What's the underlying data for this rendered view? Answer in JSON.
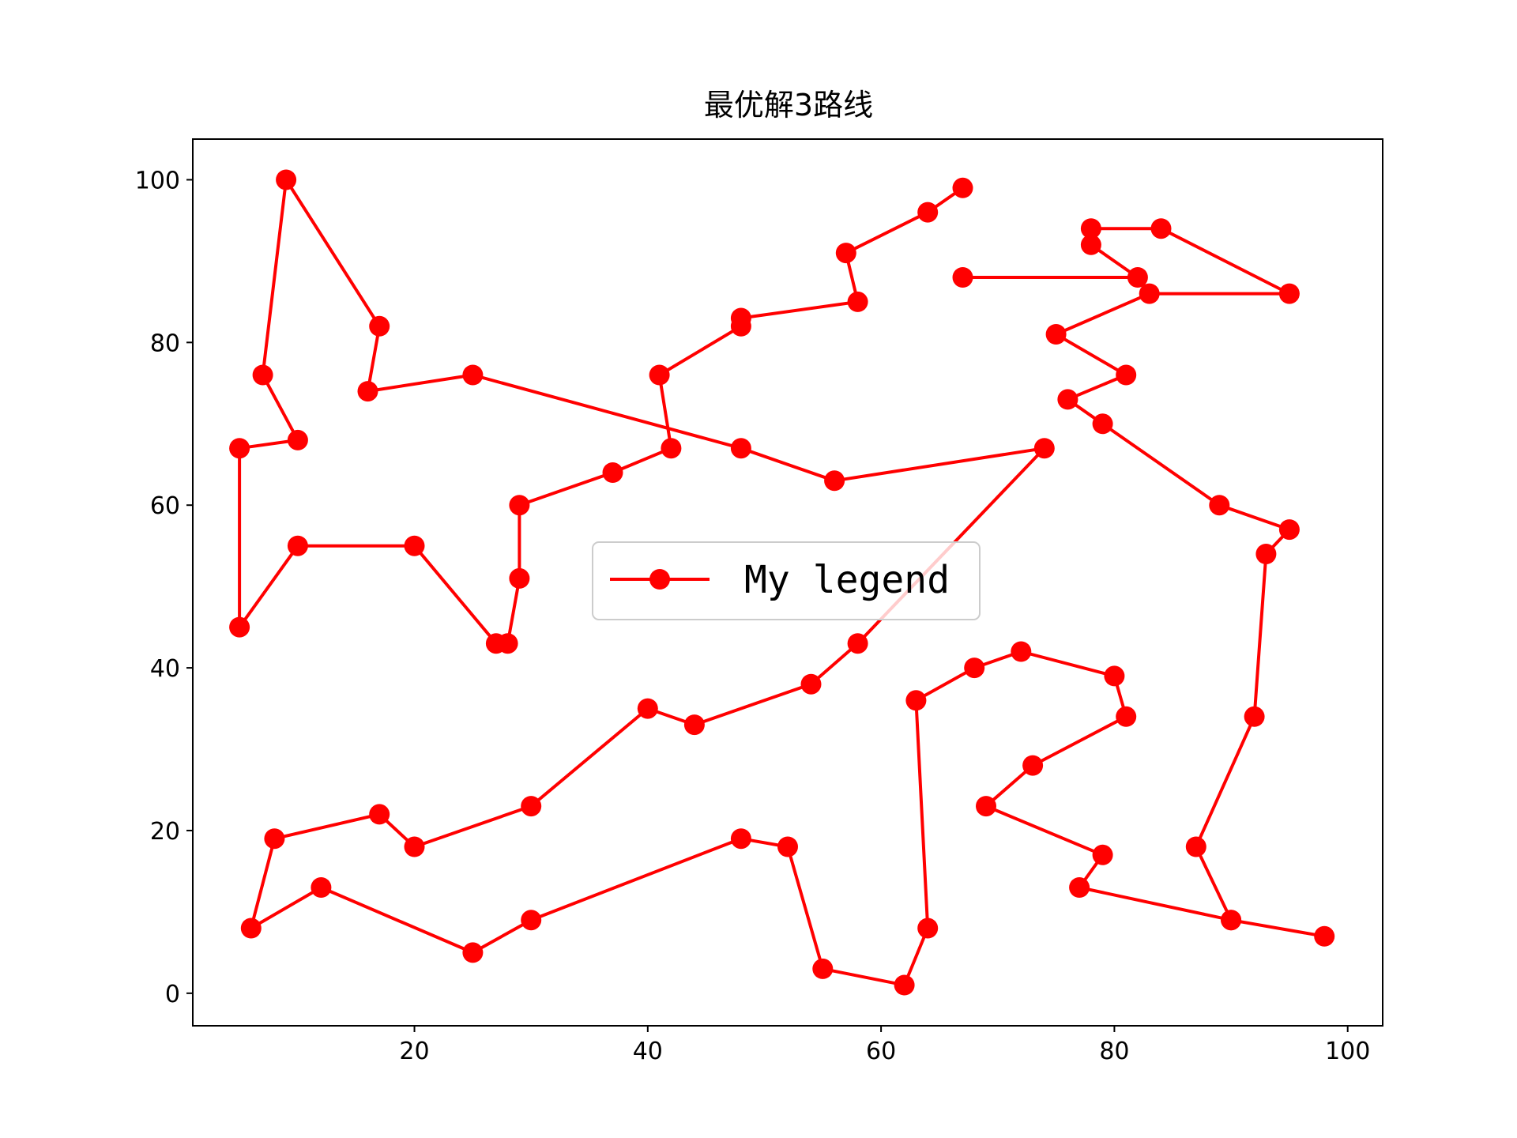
{
  "chart_data": {
    "type": "line",
    "title": "最优解3路线",
    "xlabel": "",
    "ylabel": "",
    "xlim": [
      1,
      103
    ],
    "ylim": [
      -4,
      105
    ],
    "xticks": [
      20,
      40,
      60,
      80,
      100
    ],
    "yticks": [
      0,
      20,
      40,
      60,
      80,
      100
    ],
    "grid": false,
    "legend_position": "center",
    "colors": {
      "series": "#ff0000",
      "axes": "#000000",
      "legend_border": "#cccccc"
    },
    "series": [
      {
        "name": "My legend",
        "marker": "circle",
        "x": [
          67,
          64,
          57,
          58,
          48,
          48,
          41,
          42,
          37,
          29,
          29,
          28,
          27,
          20,
          10,
          5,
          5,
          10,
          7,
          9,
          17,
          16,
          25,
          48,
          56,
          74,
          58,
          54,
          44,
          40,
          30,
          20,
          17,
          8,
          6,
          12,
          25,
          30,
          48,
          52,
          55,
          62,
          64,
          63,
          68,
          72,
          80,
          81,
          73,
          69,
          79,
          77,
          90,
          98,
          90,
          87,
          92,
          93,
          95,
          89,
          79,
          76,
          81,
          75,
          83,
          95,
          84,
          78,
          78,
          82,
          67
        ],
        "y": [
          99,
          96,
          91,
          85,
          83,
          82,
          76,
          67,
          64,
          60,
          51,
          43,
          43,
          55,
          55,
          45,
          67,
          68,
          76,
          100,
          82,
          74,
          76,
          67,
          63,
          67,
          43,
          38,
          33,
          35,
          23,
          18,
          22,
          19,
          8,
          13,
          5,
          9,
          19,
          18,
          3,
          1,
          8,
          36,
          40,
          42,
          39,
          34,
          28,
          23,
          17,
          13,
          9,
          7,
          9,
          18,
          34,
          54,
          57,
          60,
          70,
          73,
          76,
          81,
          86,
          86,
          94,
          94,
          92,
          88,
          88
        ]
      }
    ]
  }
}
